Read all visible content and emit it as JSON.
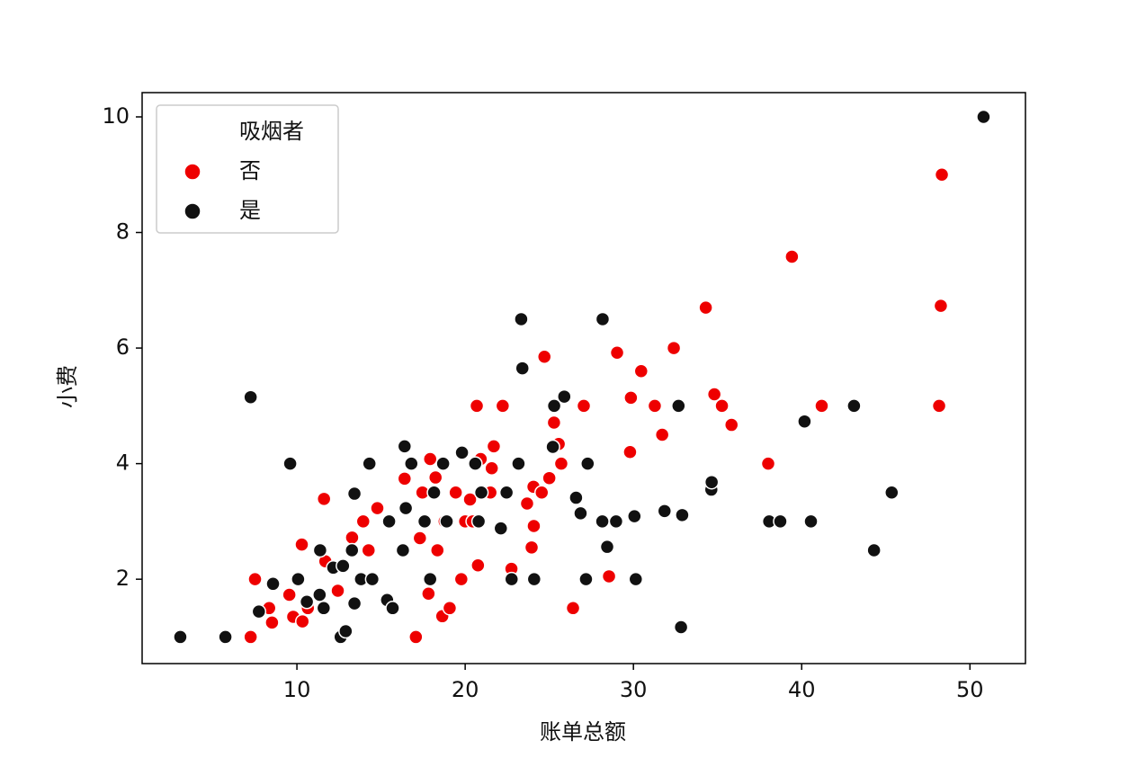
{
  "chart_data": {
    "type": "scatter",
    "x_label": "账单总额",
    "y_label": "小费",
    "legend_title": "吸烟者",
    "legend_position": "upper left",
    "xlim": [
      0.8,
      53.3
    ],
    "ylim": [
      0.54,
      10.42
    ],
    "xticks": [
      10,
      20,
      30,
      40,
      50
    ],
    "yticks": [
      2,
      4,
      6,
      8,
      10
    ],
    "series": [
      {
        "name": "否",
        "color": "#ee0000",
        "x": [
          7.25,
          7.51,
          8.35,
          8.52,
          9.55,
          9.78,
          10.29,
          10.33,
          10.65,
          11.61,
          11.69,
          12.43,
          13.28,
          13.94,
          14.26,
          14.78,
          16.4,
          17.07,
          17.31,
          17.46,
          17.82,
          17.92,
          18.24,
          18.35,
          18.64,
          18.78,
          19.08,
          19.44,
          19.77,
          20.0,
          20.29,
          20.45,
          20.69,
          20.76,
          20.92,
          21.5,
          21.58,
          21.7,
          22.23,
          22.75,
          23.68,
          23.95,
          24.06,
          24.08,
          24.55,
          24.71,
          25.0,
          25.28,
          25.56,
          25.71,
          26.41,
          27.05,
          28.55,
          29.03,
          29.85,
          29.8,
          30.46,
          31.27,
          31.71,
          32.4,
          34.3,
          34.81,
          35.26,
          35.83,
          38.01,
          39.42,
          41.19,
          48.17,
          48.27,
          48.33
        ],
        "values": [
          1.0,
          2.0,
          1.5,
          1.25,
          1.73,
          1.35,
          2.6,
          1.27,
          1.5,
          3.39,
          2.31,
          1.8,
          2.72,
          3.0,
          2.5,
          3.23,
          3.74,
          1.0,
          2.71,
          3.5,
          1.75,
          4.08,
          3.76,
          2.5,
          1.36,
          3.0,
          1.5,
          3.5,
          2.0,
          3.0,
          3.38,
          3.0,
          5.0,
          2.24,
          4.08,
          3.5,
          3.92,
          4.3,
          5.0,
          2.18,
          3.31,
          2.55,
          3.6,
          2.92,
          3.5,
          5.85,
          3.75,
          4.71,
          4.34,
          4.0,
          1.5,
          5.0,
          2.05,
          5.92,
          5.14,
          4.2,
          5.6,
          5.0,
          4.5,
          6.0,
          6.7,
          5.2,
          5.0,
          4.67,
          4.0,
          7.58,
          5.0,
          5.0,
          6.73,
          9.0
        ]
      },
      {
        "name": "是",
        "color": "#111111",
        "x": [
          3.07,
          5.75,
          7.25,
          7.74,
          8.58,
          9.6,
          10.07,
          10.59,
          11.35,
          11.38,
          11.59,
          12.16,
          12.6,
          12.74,
          12.9,
          13.27,
          13.42,
          13.42,
          13.81,
          14.31,
          14.48,
          15.36,
          15.48,
          15.69,
          16.3,
          16.4,
          16.8,
          16.47,
          17.59,
          17.92,
          18.15,
          18.69,
          18.9,
          19.81,
          20.6,
          20.8,
          20.96,
          22.12,
          22.46,
          22.76,
          23.17,
          23.33,
          23.4,
          24.1,
          25.29,
          25.21,
          25.89,
          26.59,
          26.86,
          27.18,
          27.28,
          28.17,
          28.15,
          28.44,
          28.97,
          30.06,
          30.14,
          31.85,
          32.68,
          32.83,
          32.9,
          34.63,
          34.65,
          38.07,
          38.73,
          40.17,
          40.55,
          43.11,
          44.3,
          45.35,
          50.81
        ],
        "values": [
          1.0,
          1.0,
          5.15,
          1.44,
          1.92,
          4.0,
          2.0,
          1.61,
          1.73,
          2.5,
          1.5,
          2.2,
          1.0,
          2.23,
          1.1,
          2.5,
          3.48,
          1.58,
          2.0,
          4.0,
          2.0,
          1.64,
          3.0,
          1.5,
          2.5,
          4.3,
          4.0,
          3.23,
          3.0,
          2.0,
          3.5,
          4.0,
          3.0,
          4.19,
          4.0,
          3.0,
          3.5,
          2.88,
          3.5,
          2.0,
          4.0,
          6.5,
          5.65,
          2.0,
          5.0,
          4.29,
          5.16,
          3.41,
          3.14,
          2.0,
          4.0,
          6.5,
          3.0,
          2.56,
          3.0,
          3.09,
          2.0,
          3.18,
          5.0,
          1.17,
          3.11,
          3.55,
          3.68,
          3.0,
          3.0,
          4.73,
          3.0,
          5.0,
          2.5,
          3.5,
          10.0
        ]
      }
    ]
  }
}
